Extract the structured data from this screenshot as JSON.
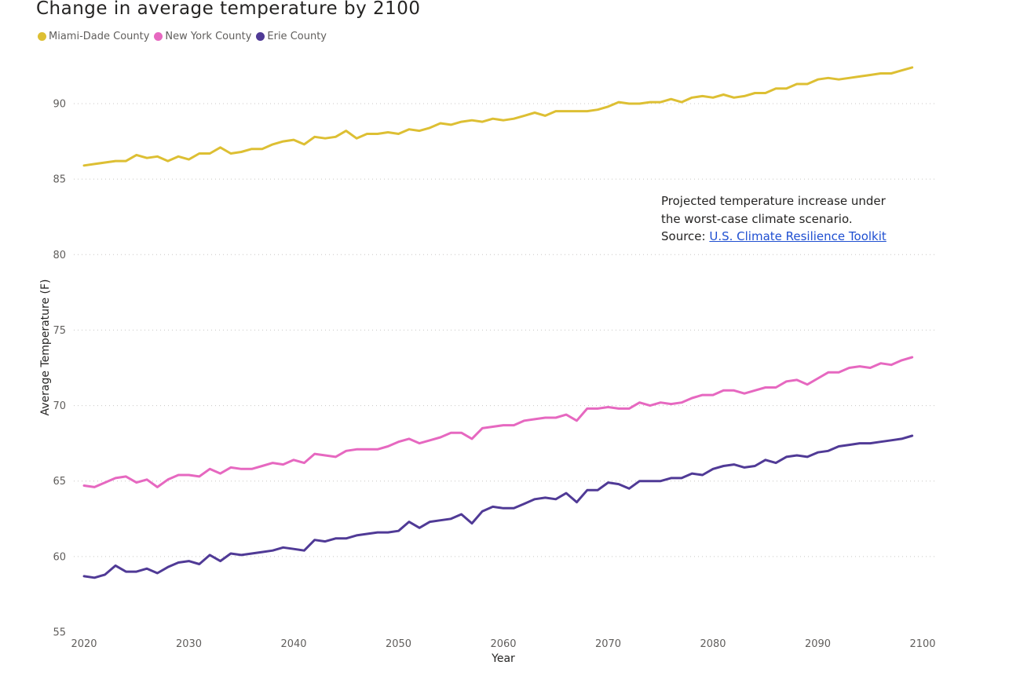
{
  "colors": {
    "miami": "#ddbf33",
    "new_york": "#e668c0",
    "erie": "#503a96",
    "grid": "#c8c6c4",
    "link": "#1f4fd1"
  },
  "legend": {
    "items": [
      {
        "label": "Miami-Dade County",
        "color": "#ddbf33"
      },
      {
        "label": "New York County",
        "color": "#e668c0"
      },
      {
        "label": "Erie County",
        "color": "#503a96"
      }
    ]
  },
  "annotation": {
    "line1": "Projected temperature increase under",
    "line2": "the worst-case climate scenario.",
    "source_prefix": "Source: ",
    "source_link": "U.S. Climate Resilience Toolkit"
  },
  "chart_data": {
    "type": "line",
    "title": "Change in average temperature by 2100",
    "xlabel": "Year",
    "ylabel": "Average Temperature (F)",
    "xlim": [
      2019,
      2100
    ],
    "ylim": [
      55,
      93
    ],
    "xticks": [
      2020,
      2030,
      2040,
      2050,
      2060,
      2070,
      2080,
      2090,
      2100
    ],
    "yticks": [
      55,
      60,
      65,
      70,
      75,
      80,
      85,
      90
    ],
    "grid": "horizontal dotted",
    "legend_position": "top-left",
    "x": [
      2020,
      2021,
      2022,
      2023,
      2024,
      2025,
      2026,
      2027,
      2028,
      2029,
      2030,
      2031,
      2032,
      2033,
      2034,
      2035,
      2036,
      2037,
      2038,
      2039,
      2040,
      2041,
      2042,
      2043,
      2044,
      2045,
      2046,
      2047,
      2048,
      2049,
      2050,
      2051,
      2052,
      2053,
      2054,
      2055,
      2056,
      2057,
      2058,
      2059,
      2060,
      2061,
      2062,
      2063,
      2064,
      2065,
      2066,
      2067,
      2068,
      2069,
      2070,
      2071,
      2072,
      2073,
      2074,
      2075,
      2076,
      2077,
      2078,
      2079,
      2080,
      2081,
      2082,
      2083,
      2084,
      2085,
      2086,
      2087,
      2088,
      2089,
      2090,
      2091,
      2092,
      2093,
      2094,
      2095,
      2096,
      2097,
      2098,
      2099
    ],
    "series": [
      {
        "name": "Miami-Dade County",
        "color": "#ddbf33",
        "values": [
          85.9,
          86.0,
          86.1,
          86.2,
          86.2,
          86.6,
          86.4,
          86.5,
          86.2,
          86.5,
          86.3,
          86.7,
          86.7,
          87.1,
          86.7,
          86.8,
          87.0,
          87.0,
          87.3,
          87.5,
          87.6,
          87.3,
          87.8,
          87.7,
          87.8,
          88.2,
          87.7,
          88.0,
          88.0,
          88.1,
          88.0,
          88.3,
          88.2,
          88.4,
          88.7,
          88.6,
          88.8,
          88.9,
          88.8,
          89.0,
          88.9,
          89.0,
          89.2,
          89.4,
          89.2,
          89.5,
          89.5,
          89.5,
          89.5,
          89.6,
          89.8,
          90.1,
          90.0,
          90.0,
          90.1,
          90.1,
          90.3,
          90.1,
          90.4,
          90.5,
          90.4,
          90.6,
          90.4,
          90.5,
          90.7,
          90.7,
          91.0,
          91.0,
          91.3,
          91.3,
          91.6,
          91.7,
          91.6,
          91.7,
          91.8,
          91.9,
          92.0,
          92.0,
          92.2,
          92.4
        ]
      },
      {
        "name": "New York County",
        "color": "#e668c0",
        "values": [
          64.7,
          64.6,
          64.9,
          65.2,
          65.3,
          64.9,
          65.1,
          64.6,
          65.1,
          65.4,
          65.4,
          65.3,
          65.8,
          65.5,
          65.9,
          65.8,
          65.8,
          66.0,
          66.2,
          66.1,
          66.4,
          66.2,
          66.8,
          66.7,
          66.6,
          67.0,
          67.1,
          67.1,
          67.1,
          67.3,
          67.6,
          67.8,
          67.5,
          67.7,
          67.9,
          68.2,
          68.2,
          67.8,
          68.5,
          68.6,
          68.7,
          68.7,
          69.0,
          69.1,
          69.2,
          69.2,
          69.4,
          69.0,
          69.8,
          69.8,
          69.9,
          69.8,
          69.8,
          70.2,
          70.0,
          70.2,
          70.1,
          70.2,
          70.5,
          70.7,
          70.7,
          71.0,
          71.0,
          70.8,
          71.0,
          71.2,
          71.2,
          71.6,
          71.7,
          71.4,
          71.8,
          72.2,
          72.2,
          72.5,
          72.6,
          72.5,
          72.8,
          72.7,
          73.0,
          73.2
        ]
      },
      {
        "name": "Erie County",
        "color": "#503a96",
        "values": [
          58.7,
          58.6,
          58.8,
          59.4,
          59.0,
          59.0,
          59.2,
          58.9,
          59.3,
          59.6,
          59.7,
          59.5,
          60.1,
          59.7,
          60.2,
          60.1,
          60.2,
          60.3,
          60.4,
          60.6,
          60.5,
          60.4,
          61.1,
          61.0,
          61.2,
          61.2,
          61.4,
          61.5,
          61.6,
          61.6,
          61.7,
          62.3,
          61.9,
          62.3,
          62.4,
          62.5,
          62.8,
          62.2,
          63.0,
          63.3,
          63.2,
          63.2,
          63.5,
          63.8,
          63.9,
          63.8,
          64.2,
          63.6,
          64.4,
          64.4,
          64.9,
          64.8,
          64.5,
          65.0,
          65.0,
          65.0,
          65.2,
          65.2,
          65.5,
          65.4,
          65.8,
          66.0,
          66.1,
          65.9,
          66.0,
          66.4,
          66.2,
          66.6,
          66.7,
          66.6,
          66.9,
          67.0,
          67.3,
          67.4,
          67.5,
          67.5,
          67.6,
          67.7,
          67.8,
          68.0
        ]
      }
    ]
  }
}
